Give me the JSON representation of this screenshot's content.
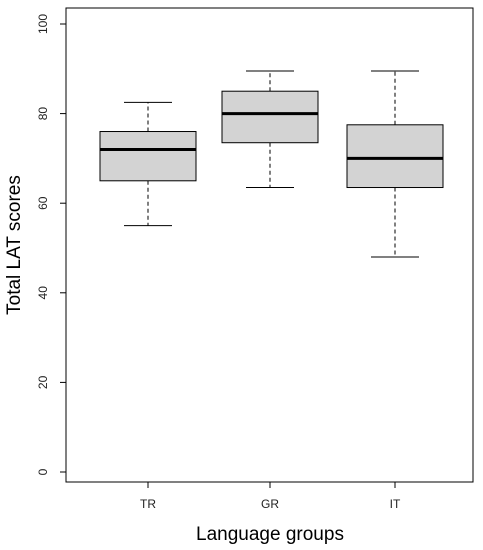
{
  "chart_data": {
    "type": "box",
    "xlabel": "Language groups",
    "ylabel": "Total LAT scores",
    "ylim": [
      0,
      100
    ],
    "yticks": [
      0,
      20,
      40,
      60,
      80,
      100
    ],
    "categories": [
      "TR",
      "GR",
      "IT"
    ],
    "boxes": [
      {
        "label": "TR",
        "whisker_low": 55,
        "q1": 65,
        "median": 72,
        "q3": 76,
        "whisker_high": 82.5
      },
      {
        "label": "GR",
        "whisker_low": 63.5,
        "q1": 73.5,
        "median": 80,
        "q3": 85,
        "whisker_high": 89.5
      },
      {
        "label": "IT",
        "whisker_low": 48,
        "q1": 63.5,
        "median": 70,
        "q3": 77.5,
        "whisker_high": 89.5
      }
    ],
    "box_fill": "#d3d3d3",
    "grid": false,
    "legend": false
  }
}
